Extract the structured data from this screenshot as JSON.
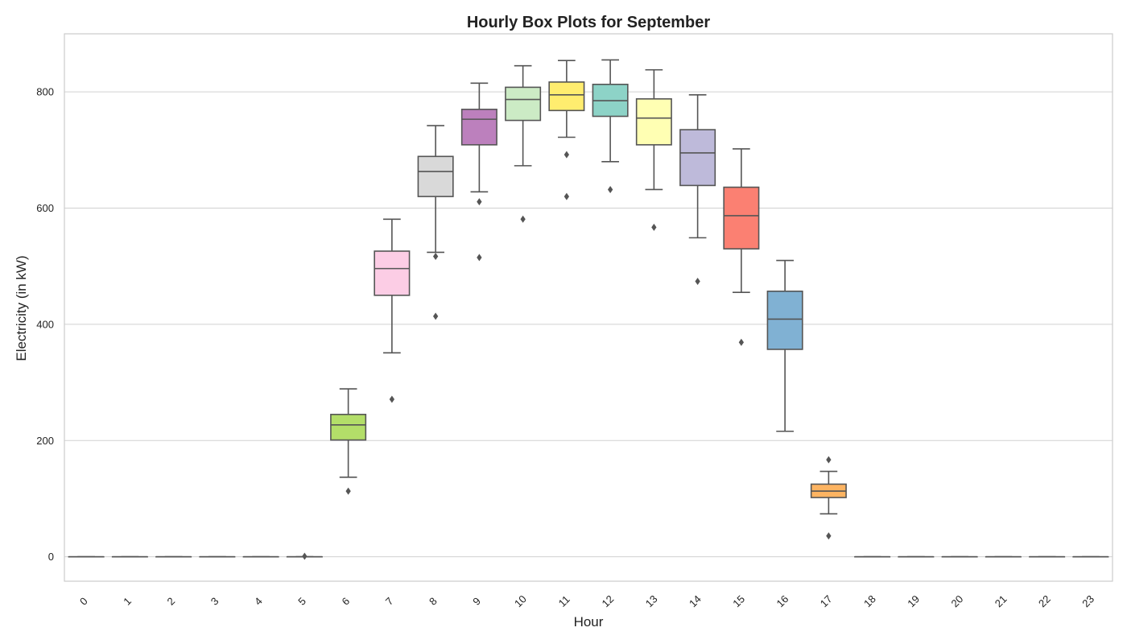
{
  "chart_data": {
    "type": "box",
    "title": "Hourly Box Plots for September",
    "xlabel": "Hour",
    "ylabel": "Electricity (in kW)",
    "ylim": [
      -42,
      900
    ],
    "yticks": [
      0,
      200,
      400,
      600,
      800
    ],
    "grid": "horizontal",
    "categories": [
      "0",
      "1",
      "2",
      "3",
      "4",
      "5",
      "6",
      "7",
      "8",
      "9",
      "10",
      "11",
      "12",
      "13",
      "14",
      "15",
      "16",
      "17",
      "18",
      "19",
      "20",
      "21",
      "22",
      "23"
    ],
    "boxes": [
      {
        "hour": "0",
        "min": 0,
        "q1": 0,
        "median": 0,
        "q3": 0,
        "max": 0,
        "outliers": [],
        "color": "#8dd3c7"
      },
      {
        "hour": "1",
        "min": 0,
        "q1": 0,
        "median": 0,
        "q3": 0,
        "max": 0,
        "outliers": [],
        "color": "#ffffb3"
      },
      {
        "hour": "2",
        "min": 0,
        "q1": 0,
        "median": 0,
        "q3": 0,
        "max": 0,
        "outliers": [],
        "color": "#bebada"
      },
      {
        "hour": "3",
        "min": 0,
        "q1": 0,
        "median": 0,
        "q3": 0,
        "max": 0,
        "outliers": [],
        "color": "#fb8072"
      },
      {
        "hour": "4",
        "min": 0,
        "q1": 0,
        "median": 0,
        "q3": 0,
        "max": 0,
        "outliers": [],
        "color": "#80b1d3"
      },
      {
        "hour": "5",
        "min": 0,
        "q1": 0,
        "median": 0,
        "q3": 0,
        "max": 0,
        "outliers": [
          1
        ],
        "color": "#fdb462"
      },
      {
        "hour": "6",
        "min": 137,
        "q1": 201,
        "median": 227,
        "q3": 245,
        "max": 289,
        "outliers": [
          113
        ],
        "color": "#b3de69"
      },
      {
        "hour": "7",
        "min": 351,
        "q1": 450,
        "median": 496,
        "q3": 526,
        "max": 581,
        "outliers": [
          271
        ],
        "color": "#fccde5"
      },
      {
        "hour": "8",
        "min": 524,
        "q1": 620,
        "median": 663,
        "q3": 689,
        "max": 742,
        "outliers": [
          517,
          414
        ],
        "color": "#d9d9d9"
      },
      {
        "hour": "9",
        "min": 628,
        "q1": 709,
        "median": 753,
        "q3": 770,
        "max": 815,
        "outliers": [
          611,
          515
        ],
        "color": "#bc80bd"
      },
      {
        "hour": "10",
        "min": 673,
        "q1": 751,
        "median": 787,
        "q3": 808,
        "max": 845,
        "outliers": [
          581
        ],
        "color": "#ccebc5"
      },
      {
        "hour": "11",
        "min": 722,
        "q1": 768,
        "median": 795,
        "q3": 817,
        "max": 854,
        "outliers": [
          692,
          620
        ],
        "color": "#ffed6f"
      },
      {
        "hour": "12",
        "min": 680,
        "q1": 758,
        "median": 785,
        "q3": 813,
        "max": 855,
        "outliers": [
          632
        ],
        "color": "#8dd3c7"
      },
      {
        "hour": "13",
        "min": 632,
        "q1": 709,
        "median": 755,
        "q3": 788,
        "max": 838,
        "outliers": [
          567
        ],
        "color": "#ffffb3"
      },
      {
        "hour": "14",
        "min": 549,
        "q1": 639,
        "median": 695,
        "q3": 735,
        "max": 795,
        "outliers": [
          474
        ],
        "color": "#bebada"
      },
      {
        "hour": "15",
        "min": 455,
        "q1": 530,
        "median": 587,
        "q3": 636,
        "max": 702,
        "outliers": [
          369
        ],
        "color": "#fb8072"
      },
      {
        "hour": "16",
        "min": 216,
        "q1": 357,
        "median": 409,
        "q3": 457,
        "max": 510,
        "outliers": [],
        "color": "#80b1d3"
      },
      {
        "hour": "17",
        "min": 74,
        "q1": 102,
        "median": 113,
        "q3": 125,
        "max": 147,
        "outliers": [
          167,
          36
        ],
        "color": "#fdb462"
      },
      {
        "hour": "18",
        "min": 0,
        "q1": 0,
        "median": 0,
        "q3": 0,
        "max": 0,
        "outliers": [],
        "color": "#b3de69"
      },
      {
        "hour": "19",
        "min": 0,
        "q1": 0,
        "median": 0,
        "q3": 0,
        "max": 0,
        "outliers": [],
        "color": "#fccde5"
      },
      {
        "hour": "20",
        "min": 0,
        "q1": 0,
        "median": 0,
        "q3": 0,
        "max": 0,
        "outliers": [],
        "color": "#d9d9d9"
      },
      {
        "hour": "21",
        "min": 0,
        "q1": 0,
        "median": 0,
        "q3": 0,
        "max": 0,
        "outliers": [],
        "color": "#bc80bd"
      },
      {
        "hour": "22",
        "min": 0,
        "q1": 0,
        "median": 0,
        "q3": 0,
        "max": 0,
        "outliers": [],
        "color": "#ccebc5"
      },
      {
        "hour": "23",
        "min": 0,
        "q1": 0,
        "median": 0,
        "q3": 0,
        "max": 0,
        "outliers": [],
        "color": "#ffed6f"
      }
    ]
  },
  "colors": {
    "line": "#555555",
    "grid": "#d0d0d0",
    "frame": "#cccccc"
  }
}
